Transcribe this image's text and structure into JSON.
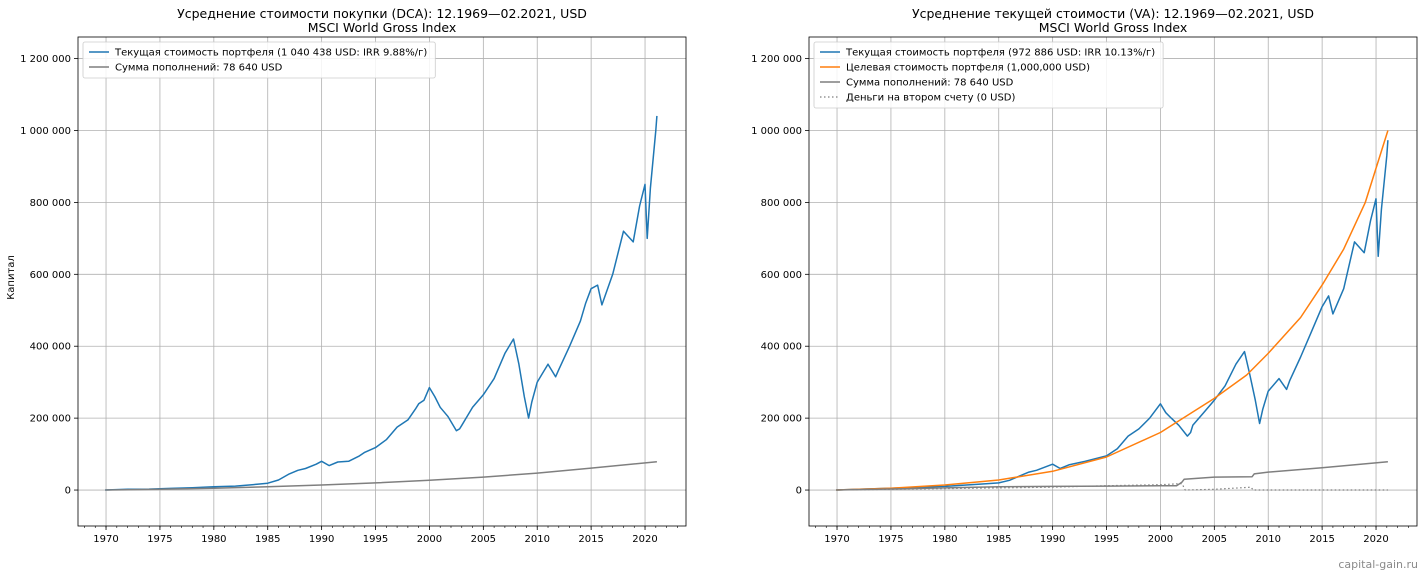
{
  "watermark": "capital-gain.ru",
  "chart_data": [
    {
      "type": "line",
      "title": "Усреднение стоимости покупки (DCA): 12.1969—02.2021, USD",
      "subtitle": "MSCI World Gross Index",
      "xlabel": "",
      "ylabel": "Капитал",
      "xlim": [
        1967.4,
        2023.8
      ],
      "ylim": [
        -100000,
        1260000
      ],
      "xticks": [
        "1970",
        "1975",
        "1980",
        "1985",
        "1990",
        "1995",
        "2000",
        "2005",
        "2010",
        "2015",
        "2020"
      ],
      "yticks": [
        "0",
        "200 000",
        "400 000",
        "600 000",
        "800 000",
        "1 000 000",
        "1 200 000"
      ],
      "grid": true,
      "legend_position": "top-left",
      "series": [
        {
          "name": "Текущая стоимость портфеля (1 040 438 USD: IRR 9.88%/г)",
          "color": "#1f77b4",
          "style": "solid",
          "x": [
            1969.92,
            1972,
            1974,
            1976,
            1978,
            1980,
            1982,
            1984,
            1985,
            1986,
            1987,
            1987.8,
            1988.5,
            1989.5,
            1990,
            1990.7,
            1991.5,
            1992.5,
            1993.5,
            1994,
            1995,
            1996,
            1997,
            1998,
            1998.7,
            1999,
            1999.5,
            2000,
            2000.5,
            2001,
            2001.7,
            2002.5,
            2002.8,
            2003,
            2003.5,
            2004,
            2005,
            2006,
            2007,
            2007.8,
            2008.3,
            2008.8,
            2009.2,
            2009.5,
            2010,
            2010.4,
            2011,
            2011.7,
            2012,
            2013,
            2014,
            2014.5,
            2015,
            2015.6,
            2016,
            2017,
            2018,
            2018.9,
            2019.5,
            2020,
            2020.2,
            2020.5,
            2021,
            2021.1
          ],
          "y": [
            0,
            2000,
            2500,
            4500,
            6500,
            9000,
            11000,
            16000,
            19000,
            28000,
            45000,
            55000,
            60000,
            72000,
            80000,
            68000,
            78000,
            80000,
            95000,
            105000,
            118000,
            140000,
            175000,
            195000,
            225000,
            240000,
            250000,
            285000,
            260000,
            230000,
            205000,
            165000,
            170000,
            180000,
            205000,
            230000,
            265000,
            310000,
            380000,
            420000,
            350000,
            260000,
            200000,
            245000,
            300000,
            320000,
            350000,
            315000,
            335000,
            400000,
            470000,
            520000,
            560000,
            570000,
            515000,
            600000,
            720000,
            690000,
            790000,
            850000,
            700000,
            840000,
            1000000,
            1040438
          ]
        },
        {
          "name": "Сумма пополнений: 78 640 USD",
          "color": "#7f7f7f",
          "style": "solid",
          "x": [
            1969.92,
            1975,
            1980,
            1985,
            1990,
            1995,
            2000,
            2005,
            2010,
            2015,
            2021.1
          ],
          "y": [
            0,
            2000,
            5000,
            9000,
            14000,
            20000,
            27000,
            36000,
            47000,
            61000,
            78640
          ]
        }
      ]
    },
    {
      "type": "line",
      "title": "Усреднение текущей стоимости (VA): 12.1969—02.2021, USD",
      "subtitle": "MSCI World Gross Index",
      "xlabel": "",
      "ylabel": "",
      "xlim": [
        1967.4,
        2023.8
      ],
      "ylim": [
        -100000,
        1260000
      ],
      "xticks": [
        "1970",
        "1975",
        "1980",
        "1985",
        "1990",
        "1995",
        "2000",
        "2005",
        "2010",
        "2015",
        "2020"
      ],
      "yticks": [
        "0",
        "200 000",
        "400 000",
        "600 000",
        "800 000",
        "1 000 000",
        "1 200 000"
      ],
      "grid": true,
      "legend_position": "top-left",
      "series": [
        {
          "name": "Текущая стоимость портфеля (972 886 USD: IRR 10.13%/г)",
          "color": "#1f77b4",
          "style": "solid",
          "x": [
            1969.92,
            1975,
            1980,
            1984,
            1985,
            1986,
            1987,
            1987.8,
            1988.5,
            1990,
            1990.7,
            1991.5,
            1993,
            1995,
            1996,
            1997,
            1998,
            1999,
            2000,
            2000.5,
            2001,
            2001.7,
            2002.5,
            2002.8,
            2003,
            2004,
            2005,
            2006,
            2007,
            2007.8,
            2008.3,
            2008.8,
            2009.2,
            2009.5,
            2010,
            2011,
            2011.7,
            2012,
            2013,
            2014,
            2015,
            2015.6,
            2016,
            2017,
            2018,
            2018.9,
            2019.5,
            2020,
            2020.2,
            2020.5,
            2021,
            2021.1
          ],
          "y": [
            0,
            5000,
            10000,
            18000,
            20000,
            27000,
            40000,
            50000,
            55000,
            72000,
            60000,
            70000,
            80000,
            95000,
            115000,
            150000,
            170000,
            200000,
            240000,
            215000,
            200000,
            180000,
            150000,
            160000,
            180000,
            215000,
            250000,
            290000,
            350000,
            385000,
            320000,
            250000,
            185000,
            225000,
            275000,
            310000,
            280000,
            305000,
            370000,
            440000,
            510000,
            540000,
            490000,
            560000,
            690000,
            660000,
            750000,
            810000,
            650000,
            780000,
            930000,
            972886
          ]
        },
        {
          "name": "Целевая стоимость портфеля (1,000,000 USD)",
          "color": "#ff7f0e",
          "style": "solid",
          "x": [
            1969.92,
            1975,
            1980,
            1985,
            1990,
            1995,
            2000,
            2005,
            2008,
            2010,
            2013,
            2015,
            2017,
            2019,
            2021.1
          ],
          "y": [
            0,
            5000,
            14000,
            28000,
            52000,
            92000,
            160000,
            255000,
            320000,
            380000,
            480000,
            570000,
            670000,
            800000,
            1000000
          ]
        },
        {
          "name": "Сумма пополнений: 78 640 USD",
          "color": "#7f7f7f",
          "style": "solid",
          "x": [
            1969.92,
            1975,
            1980,
            1985,
            1990,
            1995,
            2000,
            2001.5,
            2002,
            2002.2,
            2005,
            2008.5,
            2008.7,
            2010,
            2015,
            2021.1
          ],
          "y": [
            0,
            3000,
            6000,
            9000,
            10000,
            11000,
            12000,
            12000,
            22000,
            30000,
            36000,
            37000,
            45000,
            50000,
            62000,
            78640
          ]
        },
        {
          "name": "Деньги на втором счету (0 USD)",
          "color": "#7f7f7f",
          "style": "dotted",
          "x": [
            1969.92,
            1975,
            1980,
            1990,
            1995,
            2000,
            2002,
            2002.3,
            2005,
            2008.4,
            2008.6,
            2009,
            2015,
            2021.1
          ],
          "y": [
            0,
            2000,
            4000,
            8000,
            12000,
            15000,
            18000,
            0,
            2000,
            8000,
            0,
            0,
            0,
            0
          ]
        }
      ]
    }
  ]
}
